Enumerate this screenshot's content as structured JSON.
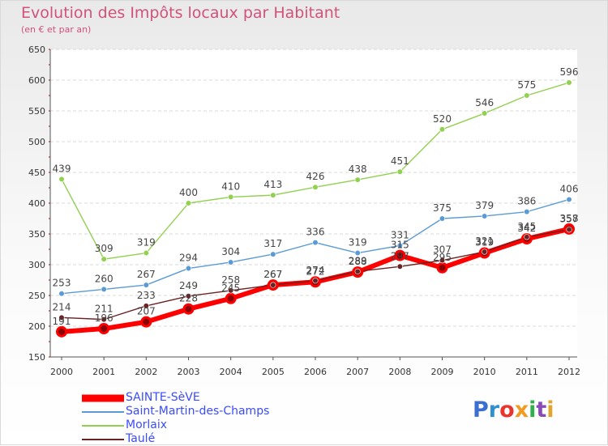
{
  "title": "Evolution des Impôts locaux par Habitant",
  "subtitle": "(en € et par an)",
  "brand": {
    "letters": [
      "P",
      "r",
      "o",
      "x",
      "i",
      "t",
      "i"
    ],
    "colors": [
      "#3a6fd1",
      "#2f8fd0",
      "#e8352e",
      "#f29b23",
      "#2fb04a",
      "#8a4bb8",
      "#e3a62c"
    ]
  },
  "chart_data": {
    "type": "line",
    "x": [
      "2000",
      "2001",
      "2002",
      "2003",
      "2004",
      "2005",
      "2006",
      "2007",
      "2008",
      "2009",
      "2010",
      "2011",
      "2012"
    ],
    "ylim": [
      150,
      650
    ],
    "yticks": [
      "150",
      "200",
      "250",
      "300",
      "350",
      "400",
      "450",
      "500",
      "550",
      "600",
      "650"
    ],
    "grid": "horizontal-dashed",
    "legend_position": "bottom-left",
    "series": [
      {
        "name": "SAINTE-SèVE",
        "color": "#ff0000",
        "width": 6,
        "values": [
          191,
          196,
          207,
          228,
          245,
          267,
          272,
          288,
          315,
          295,
          319,
          342,
          358
        ],
        "labels": [
          "191",
          "196",
          "207",
          "228",
          "245",
          "267",
          "272",
          "288",
          "315",
          "295",
          "319",
          "342",
          "358"
        ]
      },
      {
        "name": "Saint-Martin-des-Champs",
        "color": "#5b9bd5",
        "width": 1.4,
        "values": [
          253,
          260,
          267,
          294,
          304,
          317,
          336,
          319,
          331,
          375,
          379,
          386,
          406
        ],
        "labels": [
          "253",
          "260",
          "267",
          "294",
          "304",
          "317",
          "336",
          "319",
          "331",
          "375",
          "379",
          "386",
          "406"
        ]
      },
      {
        "name": "Morlaix",
        "color": "#92d050",
        "width": 1.4,
        "values": [
          439,
          309,
          319,
          400,
          410,
          413,
          426,
          438,
          451,
          520,
          546,
          575,
          596
        ],
        "labels": [
          "439",
          "309",
          "319",
          "400",
          "410",
          "413",
          "426",
          "438",
          "451",
          "520",
          "546",
          "575",
          "596"
        ]
      },
      {
        "name": "Taulé",
        "color": "#6b2222",
        "width": 1.4,
        "values": [
          214,
          211,
          233,
          249,
          258,
          267,
          274,
          289,
          297,
          307,
          321,
          345,
          357
        ],
        "labels": [
          "214",
          "211",
          "233",
          "249",
          "258",
          "267",
          "274",
          "289",
          "297",
          "307",
          "321",
          "345",
          "357"
        ]
      }
    ]
  }
}
